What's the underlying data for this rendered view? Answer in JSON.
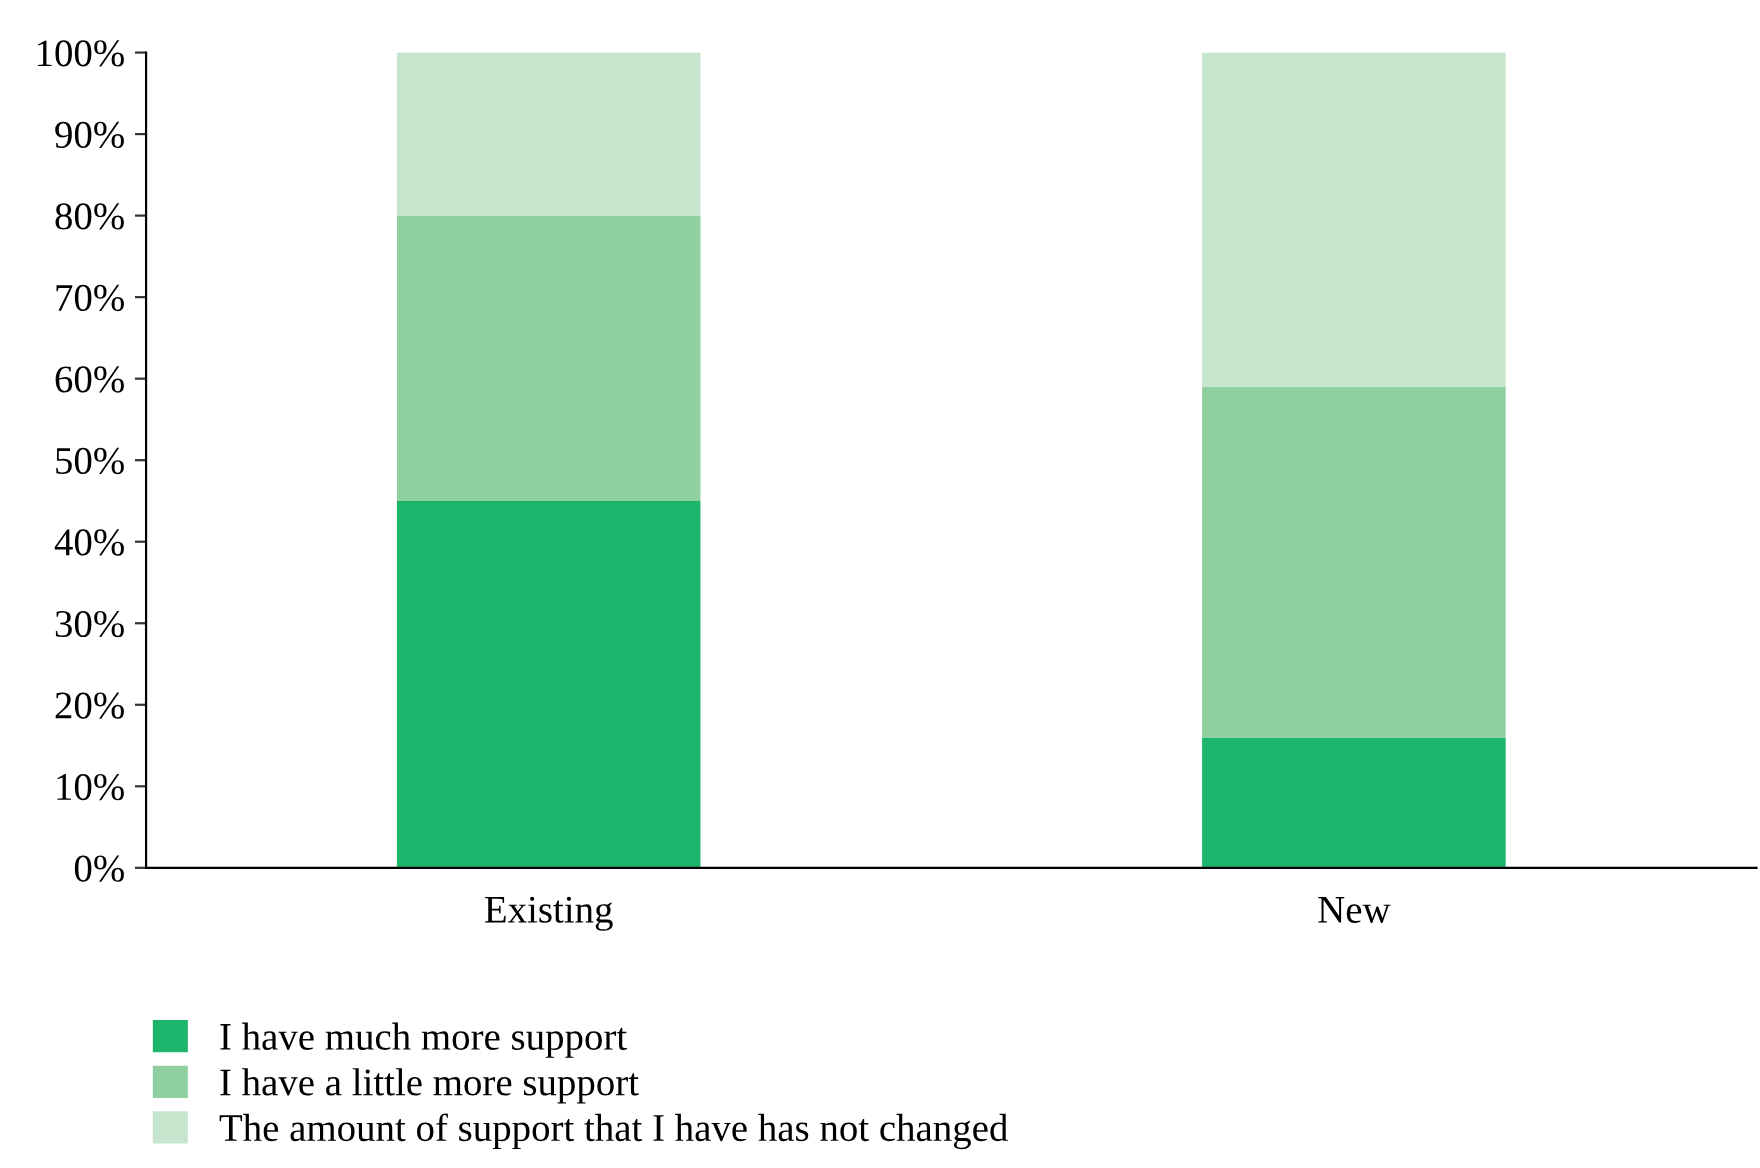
{
  "chart_data": {
    "type": "bar",
    "stacked": true,
    "categories": [
      "Existing",
      "New"
    ],
    "series": [
      {
        "name": "I have much more support",
        "color": "#1db46b",
        "values": [
          45,
          16
        ]
      },
      {
        "name": "I have a little more support",
        "color": "#8fcfa0",
        "values": [
          35,
          43
        ]
      },
      {
        "name": "The amount of support that I have has not changed",
        "color": "#c6e5cd",
        "values": [
          20,
          41
        ]
      }
    ],
    "ylim": [
      0,
      100
    ],
    "yticks": [
      {
        "value": 0,
        "label": "0%"
      },
      {
        "value": 10,
        "label": "10%"
      },
      {
        "value": 20,
        "label": "20%"
      },
      {
        "value": 30,
        "label": "30%"
      },
      {
        "value": 40,
        "label": "40%"
      },
      {
        "value": 50,
        "label": "50%"
      },
      {
        "value": 60,
        "label": "60%"
      },
      {
        "value": 70,
        "label": "70%"
      },
      {
        "value": 80,
        "label": "80%"
      },
      {
        "value": 90,
        "label": "90%"
      },
      {
        "value": 100,
        "label": "100%"
      }
    ],
    "grid": false,
    "legend": "bottom left"
  }
}
